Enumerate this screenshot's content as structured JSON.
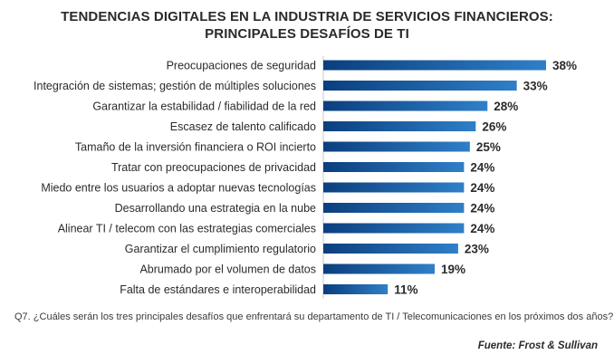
{
  "chart_data": {
    "type": "bar",
    "orientation": "horizontal",
    "title": "TENDENCIAS DIGITALES EN LA INDUSTRIA DE SERVICIOS FINANCIEROS:",
    "subtitle": "PRINCIPALES DESAFÍOS DE TI",
    "categories": [
      "Preocupaciones de seguridad",
      "Integración de sistemas; gestión de múltiples soluciones",
      "Garantizar la estabilidad / fiabilidad de la red",
      "Escasez de talento calificado",
      "Tamaño de la inversión financiera o ROI incierto",
      "Tratar con preocupaciones de privacidad",
      "Miedo entre los usuarios a adoptar nuevas tecnologías",
      "Desarrollando una estrategia en la nube",
      "Alinear TI / telecom con las estrategias comerciales",
      "Garantizar el cumplimiento regulatorio",
      "Abrumado por el volumen de datos",
      "Falta de estándares e interoperabilidad"
    ],
    "values": [
      38,
      33,
      28,
      26,
      25,
      24,
      24,
      24,
      24,
      23,
      19,
      11
    ],
    "value_labels": [
      "38%",
      "33%",
      "28%",
      "26%",
      "25%",
      "24%",
      "24%",
      "24%",
      "24%",
      "23%",
      "19%",
      "11%"
    ],
    "unit": "%",
    "xlim": [
      0,
      38
    ],
    "grid": false,
    "legend": "none",
    "colors": {
      "bar_start": "#0b3f7e",
      "bar_end": "#2f7fc8"
    }
  },
  "footnote": "Q7. ¿Cuáles serán los tres principales desafíos que enfrentará su departamento de TI / Telecomunicaciones en los próximos dos años?",
  "source": "Fuente: Frost & Sullivan"
}
